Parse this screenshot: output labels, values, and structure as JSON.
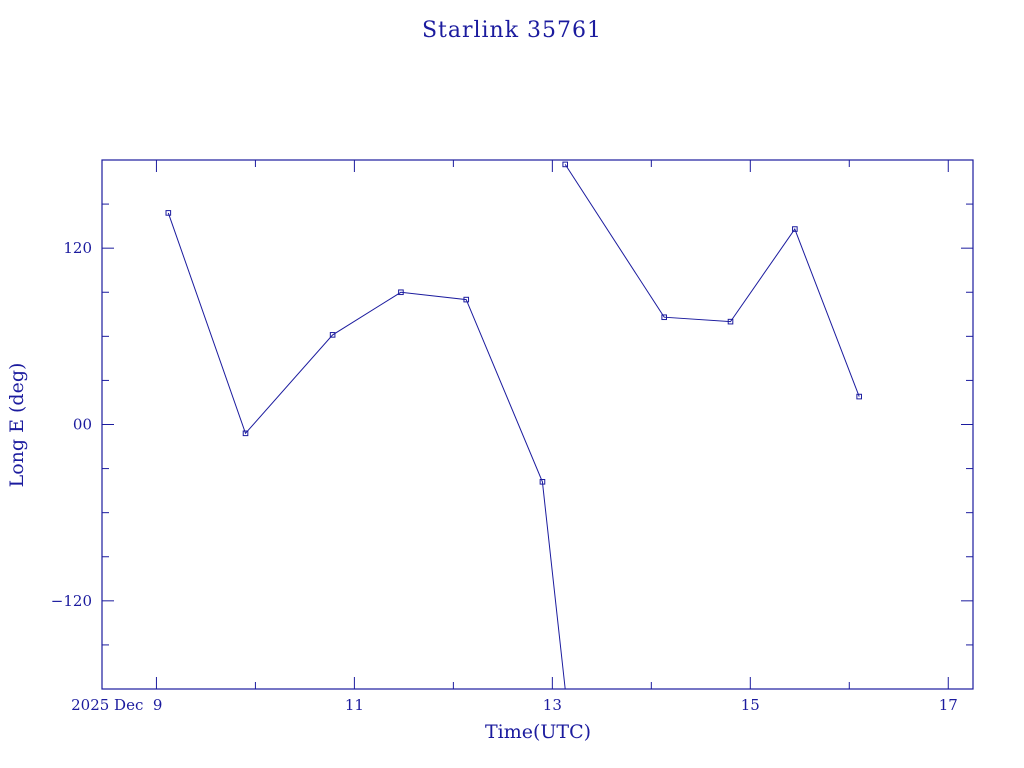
{
  "chart_data": {
    "type": "line",
    "title": "Starlink 35761",
    "xlabel": "Time(UTC)",
    "ylabel": "Long E (deg)",
    "xlim": [
      8.45,
      17.25
    ],
    "ylim": [
      -180,
      180
    ],
    "x_ticks_major": [
      {
        "value": 9,
        "label": "2025 Dec  9"
      },
      {
        "value": 11,
        "label": "11"
      },
      {
        "value": 13,
        "label": "13"
      },
      {
        "value": 15,
        "label": "15"
      },
      {
        "value": 17,
        "label": "17"
      }
    ],
    "x_ticks_minor": [
      10,
      12,
      14,
      16
    ],
    "y_ticks_major": [
      {
        "value": 120,
        "label": "120"
      },
      {
        "value": 0,
        "label": "00"
      },
      {
        "value": -120,
        "label": "−120"
      }
    ],
    "y_ticks_minor": [
      150,
      90,
      60,
      30,
      -30,
      -60,
      -90,
      -150
    ],
    "grid": false,
    "legend": false,
    "series": [
      {
        "marker": "square",
        "color": "#1b1b9e",
        "points": [
          {
            "x": 9.12,
            "y": 144
          },
          {
            "x": 9.9,
            "y": -6
          },
          {
            "x": 10.78,
            "y": 61
          },
          {
            "x": 11.47,
            "y": 90
          },
          {
            "x": 12.13,
            "y": 85
          },
          {
            "x": 12.9,
            "y": -39
          },
          {
            "x": 13.13,
            "y": -180,
            "marker": false,
            "break_after": true
          },
          {
            "x": 13.13,
            "y": 177
          },
          {
            "x": 14.13,
            "y": 73
          },
          {
            "x": 14.8,
            "y": 70
          },
          {
            "x": 15.45,
            "y": 133
          },
          {
            "x": 16.1,
            "y": 19
          }
        ]
      }
    ]
  }
}
